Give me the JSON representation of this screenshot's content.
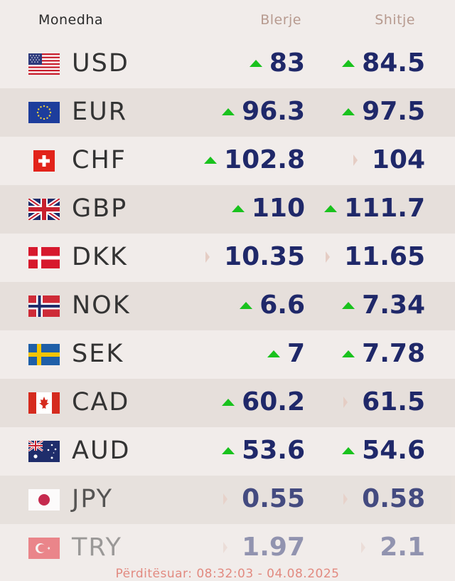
{
  "header": {
    "currency": "Monedha",
    "buy": "Blerje",
    "sell": "Shitje"
  },
  "colors": {
    "up": "#19c21d",
    "flat": "#e5cdc4",
    "value": "#1f2869"
  },
  "rates": [
    {
      "code": "USD",
      "flag": "flag-usa",
      "buy": "83",
      "buy_trend": "up",
      "sell": "84.5",
      "sell_trend": "up"
    },
    {
      "code": "EUR",
      "flag": "flag-eu",
      "buy": "96.3",
      "buy_trend": "up",
      "sell": "97.5",
      "sell_trend": "up"
    },
    {
      "code": "CHF",
      "flag": "flag-switzerland",
      "buy": "102.8",
      "buy_trend": "up",
      "sell": "104",
      "sell_trend": "flat"
    },
    {
      "code": "GBP",
      "flag": "flag-uk",
      "buy": "110",
      "buy_trend": "up",
      "sell": "111.7",
      "sell_trend": "up"
    },
    {
      "code": "DKK",
      "flag": "flag-denmark",
      "buy": "10.35",
      "buy_trend": "flat",
      "sell": "11.65",
      "sell_trend": "flat"
    },
    {
      "code": "NOK",
      "flag": "flag-norway",
      "buy": "6.6",
      "buy_trend": "up",
      "sell": "7.34",
      "sell_trend": "up"
    },
    {
      "code": "SEK",
      "flag": "flag-sweden",
      "buy": "7",
      "buy_trend": "up",
      "sell": "7.78",
      "sell_trend": "up"
    },
    {
      "code": "CAD",
      "flag": "flag-canada",
      "buy": "60.2",
      "buy_trend": "up",
      "sell": "61.5",
      "sell_trend": "flat"
    },
    {
      "code": "AUD",
      "flag": "flag-australia",
      "buy": "53.6",
      "buy_trend": "up",
      "sell": "54.6",
      "sell_trend": "up"
    },
    {
      "code": "JPY",
      "flag": "flag-japan",
      "buy": "0.55",
      "buy_trend": "flat",
      "sell": "0.58",
      "sell_trend": "flat"
    },
    {
      "code": "TRY",
      "flag": "flag-turkey",
      "buy": "1.97",
      "buy_trend": "flat",
      "sell": "2.1",
      "sell_trend": "flat"
    }
  ],
  "footer": {
    "updated": "Përditësuar: 08:32:03 - 04.08.2025"
  }
}
